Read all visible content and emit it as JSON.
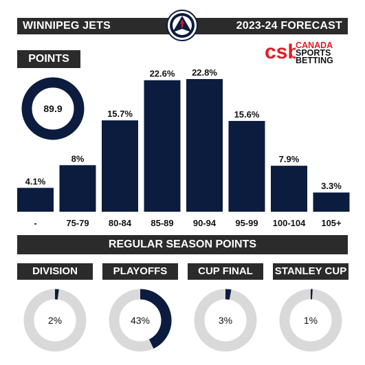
{
  "header": {
    "team_name": "WINNIPEG JETS",
    "season_title": "2023-24 FORECAST"
  },
  "team_logo": {
    "icon": "winnipeg-jets-logo-icon"
  },
  "brand": {
    "monogram": "csb",
    "line1": "CANADA",
    "line2": "SPORTS",
    "line3": "BETTING"
  },
  "points_label": "POINTS",
  "projected_points": "89.9",
  "colors": {
    "navy": "#0c1c3f",
    "dark_bar": "#2b2b2b",
    "ring_grey": "#d9d9d9",
    "brand_red": "#e31b23"
  },
  "chart_data": {
    "type": "bar",
    "title": "",
    "xlabel": "REGULAR SEASON POINTS",
    "ylabel": "",
    "categories": [
      "-",
      "75-79",
      "80-84",
      "85-89",
      "90-94",
      "95-99",
      "100-104",
      "105+"
    ],
    "values": [
      4.1,
      8,
      15.7,
      22.6,
      22.8,
      15.6,
      7.9,
      3.3
    ],
    "value_labels": [
      "4.1%",
      "8%",
      "15.7%",
      "22.6%",
      "22.8%",
      "15.6%",
      "7.9%",
      "3.3%"
    ],
    "ylim": [
      0,
      22.8
    ],
    "grid": false,
    "legend": "none",
    "color": "#0c1c3f"
  },
  "probabilities": [
    {
      "label": "DIVISION",
      "value": 2,
      "display": "2%"
    },
    {
      "label": "PLAYOFFS",
      "value": 43,
      "display": "43%"
    },
    {
      "label": "CUP FINAL",
      "value": 3,
      "display": "3%"
    },
    {
      "label": "STANLEY CUP",
      "value": 1,
      "display": "1%"
    }
  ]
}
